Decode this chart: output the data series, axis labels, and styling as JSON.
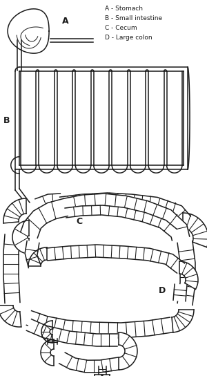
{
  "legend": [
    "A - Stomach",
    "B - Small intestine",
    "C - Cecum",
    "D - Large colon"
  ],
  "bg_color": "#ffffff",
  "line_color": "#1a1a1a",
  "lw": 1.1,
  "figsize": [
    3.0,
    5.44
  ],
  "dpi": 100
}
